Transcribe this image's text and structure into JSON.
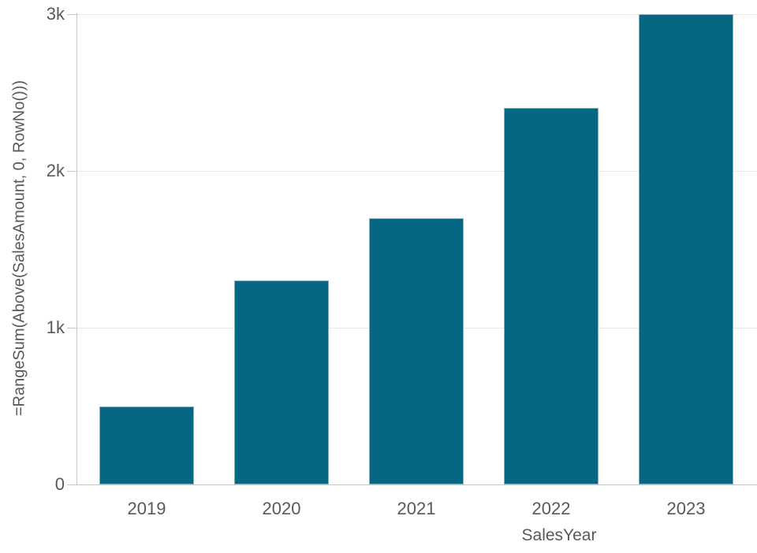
{
  "chart_data": {
    "type": "bar",
    "categories": [
      "2019",
      "2020",
      "2021",
      "2022",
      "2023"
    ],
    "values": [
      500,
      1300,
      1700,
      2400,
      3000
    ],
    "title": "",
    "xlabel": "SalesYear",
    "ylabel": "=RangeSum(Above(SalesAmount, 0, RowNo()))",
    "ylim": [
      0,
      3000
    ],
    "yticks": [
      {
        "value": 0,
        "label": "0"
      },
      {
        "value": 1000,
        "label": "1k"
      },
      {
        "value": 2000,
        "label": "2k"
      },
      {
        "value": 3000,
        "label": "3k"
      }
    ],
    "grid": true,
    "legend_position": "none",
    "colors": {
      "bar_fill": "#066782",
      "bar_edge": "rgba(255,255,255,0.5)",
      "gridline": "#e9e9e9",
      "axis_line": "#c6c6c6",
      "tick_mark": "#c6c6c6",
      "label_text": "#595959",
      "background": "#ffffff"
    }
  }
}
